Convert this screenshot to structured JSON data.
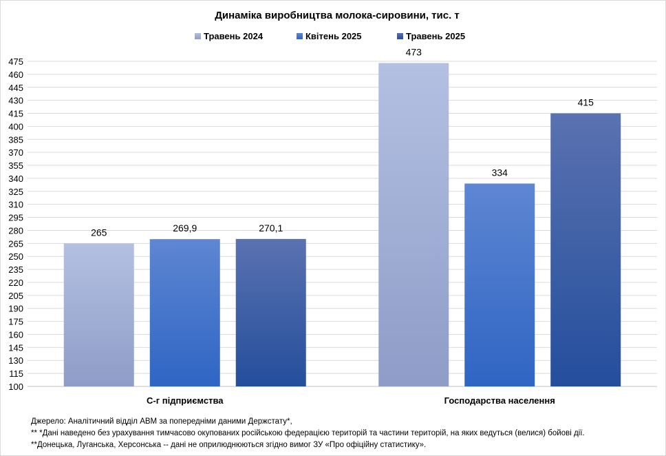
{
  "chart_data": {
    "type": "bar",
    "title": "Динаміка виробництва молока-сировини, тис. т",
    "categories": [
      "С-г підприємства",
      "Господарства населення"
    ],
    "series": [
      {
        "name": "Травень 2024",
        "values": [
          265,
          473
        ],
        "labels": [
          "265",
          "473"
        ],
        "color_top": "#b4c0e2",
        "color_bottom": "#8e9cc7"
      },
      {
        "name": "Квітень 2025",
        "values": [
          269.9,
          334
        ],
        "labels": [
          "269,9",
          "334"
        ],
        "color_top": "#5e86d2",
        "color_bottom": "#2f65c4"
      },
      {
        "name": "Травень 2025",
        "values": [
          270.1,
          415
        ],
        "labels": [
          "270,1",
          "415"
        ],
        "color_top": "#5a72b0",
        "color_bottom": "#244e9c"
      }
    ],
    "ylim": [
      100,
      475
    ],
    "ytick_step": 15,
    "grid": true,
    "legend": "top-center",
    "xlabel": "",
    "ylabel": ""
  },
  "footnotes": [
    "Джерело:  Аналітичний відділ АВМ за попередніми даними Держстату*,",
    "** *Дані наведено  без урахування тимчасово окупованих російською федерацією територій та частини територій, на яких ведуться  (велися) бойові дії.",
    "**Донецька,  Луганська, Херсонська -- дані не оприлюднюються  згідно вимог ЗУ «Про офіційну статистику»."
  ]
}
